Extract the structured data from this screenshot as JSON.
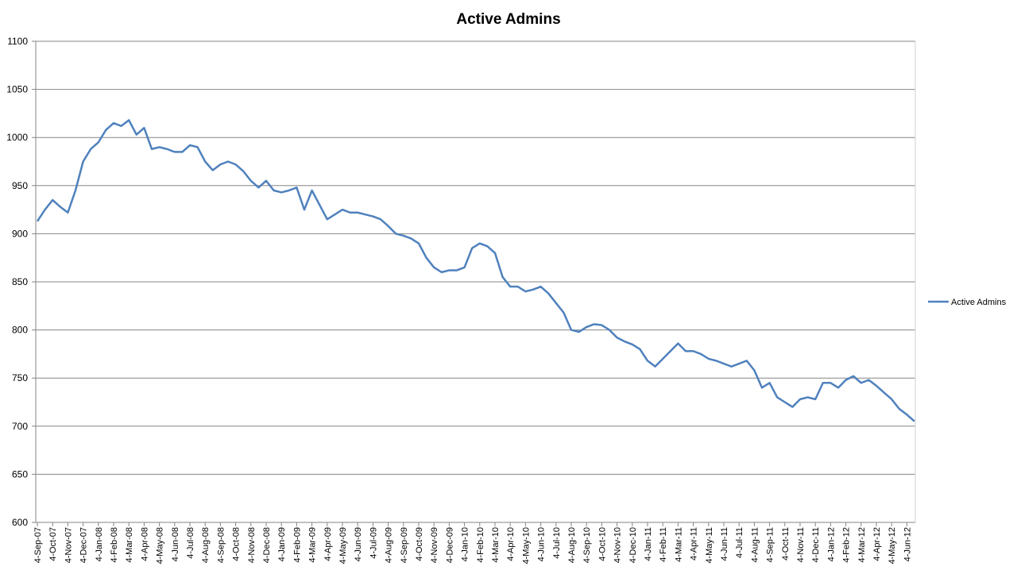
{
  "chart_data": {
    "type": "line",
    "title": "Active Admins",
    "categories": [
      "4-Sep-07",
      null,
      "4-Oct-07",
      null,
      "4-Nov-07",
      null,
      "4-Dec-07",
      null,
      "4-Jan-08",
      null,
      "4-Feb-08",
      null,
      "4-Mar-08",
      null,
      "4-Apr-08",
      null,
      "4-May-08",
      null,
      "4-Jun-08",
      null,
      "4-Jul-08",
      null,
      "4-Aug-08",
      null,
      "4-Sep-08",
      null,
      "4-Oct-08",
      null,
      "4-Nov-08",
      null,
      "4-Dec-08",
      null,
      "4-Jan-09",
      null,
      "4-Feb-09",
      null,
      "4-Mar-09",
      null,
      "4-Apr-09",
      null,
      "4-May-09",
      null,
      "4-Jun-09",
      null,
      "4-Jul-09",
      null,
      "4-Aug-09",
      null,
      "4-Sep-09",
      null,
      "4-Oct-09",
      null,
      "4-Nov-09",
      null,
      "4-Dec-09",
      null,
      "4-Jan-10",
      null,
      "4-Feb-10",
      null,
      "4-Mar-10",
      null,
      "4-Apr-10",
      null,
      "4-May-10",
      null,
      "4-Jun-10",
      null,
      "4-Jul-10",
      null,
      "4-Aug-10",
      null,
      "4-Sep-10",
      null,
      "4-Oct-10",
      null,
      "4-Nov-10",
      null,
      "4-Dec-10",
      null,
      "4-Jan-11",
      null,
      "4-Feb-11",
      null,
      "4-Mar-11",
      null,
      "4-Apr-11",
      null,
      "4-May-11",
      null,
      "4-Jun-11",
      null,
      "4-Jul-11",
      null,
      "4-Aug-11",
      null,
      "4-Sep-11",
      null,
      "4-Oct-11",
      null,
      "4-Nov-11",
      null,
      "4-Dec-11",
      null,
      "4-Jan-12",
      null,
      "4-Feb-12",
      null,
      "4-Mar-12",
      null,
      "4-Apr-12",
      null,
      "4-May-12",
      null,
      "4-Jun-12",
      null
    ],
    "series": [
      {
        "name": "Active Admins",
        "color": "#4f81bd",
        "values": [
          913,
          925,
          935,
          928,
          922,
          945,
          975,
          988,
          995,
          1008,
          1015,
          1012,
          1018,
          1003,
          1010,
          988,
          990,
          988,
          985,
          985,
          992,
          990,
          975,
          966,
          972,
          975,
          972,
          965,
          955,
          948,
          955,
          945,
          943,
          945,
          948,
          925,
          945,
          930,
          915,
          920,
          925,
          922,
          922,
          920,
          918,
          915,
          908,
          900,
          898,
          895,
          890,
          875,
          865,
          860,
          862,
          862,
          865,
          885,
          890,
          887,
          880,
          855,
          845,
          845,
          840,
          842,
          845,
          838,
          828,
          818,
          800,
          798,
          803,
          806,
          805,
          800,
          792,
          788,
          785,
          780,
          768,
          762,
          770,
          778,
          786,
          778,
          778,
          775,
          770,
          768,
          765,
          762,
          765,
          768,
          758,
          740,
          745,
          730,
          725,
          720,
          728,
          730,
          728,
          745,
          745,
          740,
          748,
          752,
          745,
          748,
          742,
          735,
          728,
          718,
          712,
          705
        ]
      }
    ],
    "ylim": [
      600,
      1100
    ],
    "yticks": [
      600,
      650,
      700,
      750,
      800,
      850,
      900,
      950,
      1000,
      1050,
      1100
    ],
    "grid": true,
    "legend": "right"
  }
}
